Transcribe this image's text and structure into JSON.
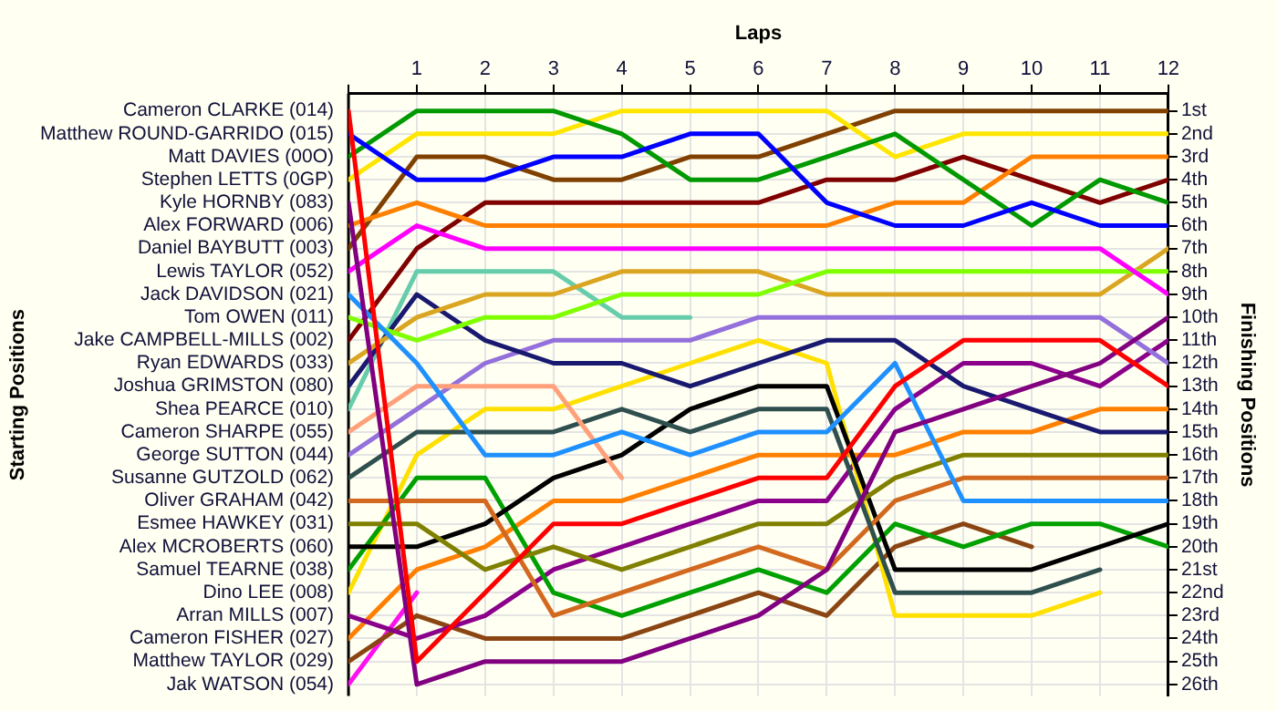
{
  "chart_data": {
    "type": "line",
    "xlabel": "Laps",
    "ylabel": "Finishing Positions",
    "annotations": [
      "Starting Positions"
    ],
    "legend": "left",
    "x": [
      0,
      1,
      2,
      3,
      4,
      5,
      6,
      7,
      8,
      9,
      10,
      11,
      12
    ],
    "xlim": [
      0,
      12
    ],
    "xticks": [
      {
        "value": 0,
        "label": null
      },
      1,
      2,
      3,
      4,
      5,
      6,
      7,
      8,
      9,
      10,
      11,
      12
    ],
    "ylim": [
      26.5,
      0.25
    ],
    "yticks": [
      {
        "value": 1,
        "label": "1st"
      },
      {
        "value": 2,
        "label": "2nd"
      },
      {
        "value": 3,
        "label": "3rd"
      },
      {
        "value": 4,
        "label": "4th"
      },
      {
        "value": 5,
        "label": "5th"
      },
      {
        "value": 6,
        "label": "6th"
      },
      {
        "value": 7,
        "label": "7th"
      },
      {
        "value": 8,
        "label": "8th"
      },
      {
        "value": 9,
        "label": "9th"
      },
      {
        "value": 10,
        "label": "10th"
      },
      {
        "value": 11,
        "label": "11th"
      },
      {
        "value": 12,
        "label": "12th"
      },
      {
        "value": 13,
        "label": "13th"
      },
      {
        "value": 14,
        "label": "14th"
      },
      {
        "value": 15,
        "label": "15th"
      },
      {
        "value": 16,
        "label": "16th"
      },
      {
        "value": 17,
        "label": "17th"
      },
      {
        "value": 18,
        "label": "18th"
      },
      {
        "value": 19,
        "label": "19th"
      },
      {
        "value": 20,
        "label": "20th"
      },
      {
        "value": 21,
        "label": "21st"
      },
      {
        "value": 22,
        "label": "22nd"
      },
      {
        "value": 23,
        "label": "23rd"
      },
      {
        "value": 24,
        "label": "24th"
      },
      {
        "value": 25,
        "label": "25th"
      },
      {
        "value": 26,
        "label": "26th"
      }
    ],
    "grid": true,
    "marker": "none",
    "line_style": "solid",
    "series": [
      {
        "name": "Cameron CLARKE (014)",
        "color": "#ff0000",
        "values": [
          1,
          25,
          22,
          19,
          19,
          18,
          17,
          17,
          13,
          11,
          11,
          11,
          13
        ]
      },
      {
        "name": "Matthew ROUND-GARRIDO (015)",
        "color": "#0000ff",
        "values": [
          2,
          4,
          4,
          3,
          3,
          2,
          2,
          5,
          6,
          6,
          5,
          6,
          6
        ]
      },
      {
        "name": "Matt DAVIES (00O)",
        "color": "#009900",
        "values": [
          3,
          1,
          1,
          1,
          2,
          4,
          4,
          3,
          2,
          4,
          6,
          4,
          5
        ]
      },
      {
        "name": "Stephen LETTS (0GP)",
        "color": "#ffe600",
        "values": [
          4,
          2,
          2,
          2,
          1,
          1,
          1,
          1,
          3,
          2,
          2,
          2,
          2
        ]
      },
      {
        "name": "Kyle HORNBY (083)",
        "color": "#800080",
        "values": [
          5,
          26,
          25,
          25,
          25,
          24,
          23,
          21,
          15,
          14,
          13,
          12,
          10
        ]
      },
      {
        "name": "Alex FORWARD (006)",
        "color": "#ff8000",
        "values": [
          6,
          5,
          6,
          6,
          6,
          6,
          6,
          6,
          5,
          5,
          3,
          3,
          3
        ]
      },
      {
        "name": "Daniel BAYBUTT (003)",
        "color": "#804000",
        "values": [
          7,
          3,
          3,
          4,
          4,
          3,
          3,
          2,
          1,
          1,
          1,
          1,
          1
        ]
      },
      {
        "name": "Lewis TAYLOR (052)",
        "color": "#ff00ff",
        "values": [
          8,
          6,
          7,
          7,
          7,
          7,
          7,
          7,
          7,
          7,
          7,
          7,
          9
        ]
      },
      {
        "name": "Jack DAVIDSON (021)",
        "color": "#1e90ff",
        "values": [
          9,
          12,
          16,
          16,
          15,
          16,
          15,
          15,
          12,
          18,
          18,
          18,
          18
        ]
      },
      {
        "name": "Tom OWEN (011)",
        "color": "#7fff00",
        "values": [
          10,
          11,
          10,
          10,
          9,
          9,
          9,
          8,
          8,
          8,
          8,
          8,
          8
        ]
      },
      {
        "name": "Jake CAMPBELL-MILLS (002)",
        "color": "#800000",
        "values": [
          11,
          7,
          5,
          5,
          5,
          5,
          5,
          4,
          4,
          3,
          4,
          5,
          4
        ]
      },
      {
        "name": "Ryan EDWARDS (033)",
        "color": "#daa520",
        "values": [
          12,
          10,
          9,
          9,
          8,
          8,
          8,
          9,
          9,
          9,
          9,
          9,
          7
        ]
      },
      {
        "name": "Joshua GRIMSTON (080)",
        "color": "#191970",
        "values": [
          13,
          9,
          11,
          12,
          12,
          13,
          12,
          11,
          11,
          13,
          14,
          15,
          15
        ]
      },
      {
        "name": "Shea PEARCE (010)",
        "color": "#66cdaa",
        "values": [
          14,
          8,
          8,
          8,
          10,
          10,
          null,
          null,
          null,
          null,
          null,
          null,
          null
        ]
      },
      {
        "name": "Cameron SHARPE (055)",
        "color": "#ffa07a",
        "values": [
          15,
          13,
          13,
          13,
          17,
          null,
          null,
          null,
          null,
          null,
          null,
          null,
          null
        ]
      },
      {
        "name": "George SUTTON (044)",
        "color": "#9370db",
        "values": [
          16,
          14,
          12,
          11,
          11,
          11,
          10,
          10,
          10,
          10,
          10,
          10,
          12
        ]
      },
      {
        "name": "Susanne GUTZOLD (062)",
        "color": "#2f4f4f",
        "values": [
          17,
          15,
          15,
          15,
          14,
          15,
          14,
          14,
          22,
          22,
          22,
          21,
          null
        ]
      },
      {
        "name": "Oliver GRAHAM (042)",
        "color": "#d2691e",
        "values": [
          18,
          18,
          18,
          23,
          22,
          21,
          20,
          21,
          18,
          17,
          17,
          17,
          17
        ]
      },
      {
        "name": "Esmee HAWKEY (031)",
        "color": "#808000",
        "values": [
          19,
          19,
          21,
          20,
          21,
          20,
          19,
          19,
          17,
          16,
          16,
          16,
          16
        ]
      },
      {
        "name": "Alex MCROBERTS (060)",
        "color": "#000000",
        "values": [
          20,
          20,
          19,
          17,
          16,
          14,
          13,
          13,
          21,
          21,
          21,
          20,
          19
        ]
      },
      {
        "name": "Samuel TEARNE (038)",
        "color": "#00a000",
        "values": [
          21,
          17,
          17,
          22,
          23,
          22,
          21,
          22,
          19,
          20,
          19,
          19,
          20
        ]
      },
      {
        "name": "Dino LEE (008)",
        "color": "#ffe000",
        "values": [
          22,
          16,
          14,
          14,
          13,
          12,
          11,
          12,
          23,
          23,
          23,
          22,
          null
        ]
      },
      {
        "name": "Arran MILLS (007)",
        "color": "#8b008b",
        "values": [
          23,
          24,
          23,
          21,
          20,
          19,
          18,
          18,
          14,
          12,
          12,
          13,
          11
        ]
      },
      {
        "name": "Cameron FISHER (027)",
        "color": "#ff7f00",
        "values": [
          24,
          21,
          20,
          18,
          18,
          17,
          16,
          16,
          16,
          15,
          15,
          14,
          14
        ]
      },
      {
        "name": "Matthew TAYLOR (029)",
        "color": "#8b4513",
        "values": [
          25,
          23,
          24,
          24,
          24,
          23,
          22,
          23,
          20,
          19,
          20,
          null,
          null
        ]
      },
      {
        "name": "Jak WATSON (054)",
        "color": "#ff10f0",
        "values": [
          26,
          22,
          null,
          null,
          null,
          null,
          null,
          null,
          null,
          null,
          null,
          null,
          null
        ]
      }
    ]
  }
}
